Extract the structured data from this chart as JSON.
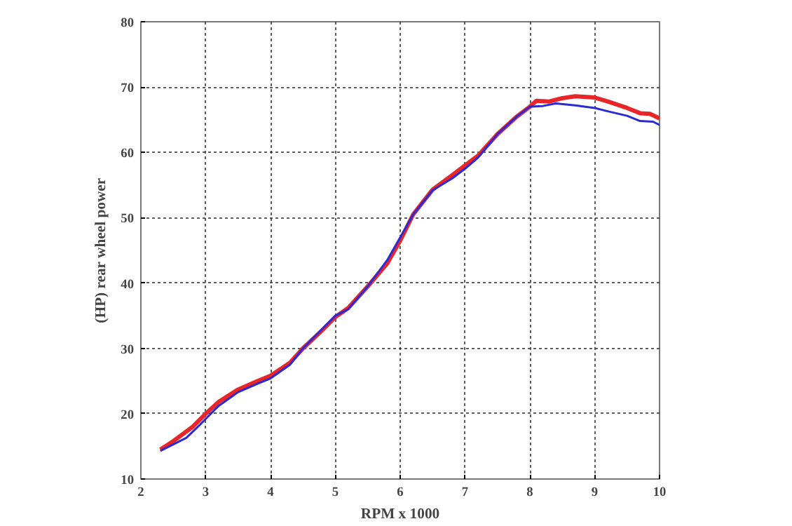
{
  "chart_data": {
    "type": "line",
    "xlabel": "RPM x 1000",
    "ylabel": "(HP) rear wheel power",
    "xlim": [
      2,
      10
    ],
    "ylim": [
      10,
      80
    ],
    "xticks": [
      2,
      3,
      4,
      5,
      6,
      7,
      8,
      9,
      10
    ],
    "yticks": [
      10,
      20,
      30,
      40,
      50,
      60,
      70,
      80
    ],
    "grid": true,
    "line_style": "solid",
    "marker": "none",
    "series": [
      {
        "color": "#e8262a",
        "x": [
          2.3,
          2.5,
          2.8,
          3.0,
          3.2,
          3.5,
          3.8,
          4.0,
          4.3,
          4.5,
          4.8,
          5.0,
          5.2,
          5.5,
          5.8,
          6.0,
          6.2,
          6.5,
          6.8,
          7.0,
          7.2,
          7.5,
          7.8,
          8.0,
          8.1,
          8.3,
          8.5,
          8.7,
          9.0,
          9.2,
          9.5,
          9.7,
          9.85,
          10.0
        ],
        "values": [
          14.5,
          15.8,
          18,
          20,
          21.8,
          23.7,
          25,
          25.8,
          27.8,
          30,
          32.8,
          34.8,
          36.2,
          39.5,
          43,
          46.5,
          50.5,
          54.3,
          56.5,
          58,
          59.5,
          62.8,
          65.5,
          67,
          67.9,
          67.8,
          68.3,
          68.6,
          68.4,
          67.8,
          66.8,
          66,
          65.9,
          65.2
        ]
      },
      {
        "color": "#2b2bd6",
        "x": [
          2.3,
          2.5,
          2.7,
          2.9,
          3.0,
          3.2,
          3.5,
          3.8,
          4.0,
          4.3,
          4.5,
          4.8,
          5.0,
          5.2,
          5.5,
          5.8,
          6.0,
          6.2,
          6.5,
          6.8,
          7.0,
          7.2,
          7.5,
          7.8,
          8.0,
          8.2,
          8.4,
          8.7,
          9.0,
          9.2,
          9.5,
          9.7,
          9.9,
          10.0
        ],
        "values": [
          14.3,
          15.3,
          16.3,
          18.2,
          19.2,
          21.2,
          23.3,
          24.6,
          25.4,
          27.5,
          30,
          33,
          35,
          36,
          39.5,
          43.5,
          47,
          50.5,
          54.2,
          56,
          57.5,
          59.2,
          62.8,
          65.5,
          67,
          67.1,
          67.5,
          67.2,
          66.8,
          66.3,
          65.6,
          64.8,
          64.7,
          64.2
        ]
      }
    ]
  }
}
